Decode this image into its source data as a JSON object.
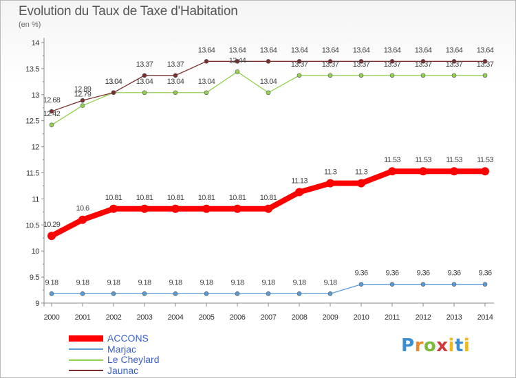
{
  "title": "Evolution du Taux de Taxe d'Habitation",
  "subtitle": "(en %)",
  "logo_text": "Proxiti",
  "chart_data": {
    "type": "line",
    "x": [
      "2000",
      "2001",
      "2002",
      "2003",
      "2004",
      "2005",
      "2006",
      "2007",
      "2008",
      "2009",
      "2010",
      "2011",
      "2012",
      "2013",
      "2014"
    ],
    "ylim": [
      9,
      14
    ],
    "yticks": [
      "9",
      "9.5",
      "10",
      "10.5",
      "11",
      "11.5",
      "12",
      "12.5",
      "13",
      "13.5",
      "14"
    ],
    "grid": false,
    "legend_position": "bottom-left",
    "series": [
      {
        "name": "ACCONS",
        "color": "#ff0000",
        "values": [
          10.29,
          10.6,
          10.81,
          10.81,
          10.81,
          10.81,
          10.81,
          10.81,
          11.13,
          11.3,
          11.3,
          11.53,
          11.53,
          11.53,
          11.53
        ],
        "labels": [
          "10.29",
          "10.6",
          "10.81",
          "10.81",
          "10.81",
          "10.81",
          "10.81",
          "10.81",
          "11.13",
          "11.3",
          "11.3",
          "11.53",
          "11.53",
          "11.53",
          "11.53"
        ]
      },
      {
        "name": "Marjac",
        "color": "#5b9bd5",
        "values": [
          9.18,
          9.18,
          9.18,
          9.18,
          9.18,
          9.18,
          9.18,
          9.18,
          9.18,
          9.18,
          9.36,
          9.36,
          9.36,
          9.36,
          9.36
        ],
        "labels": [
          "9.18",
          "9.18",
          "9.18",
          "9.18",
          "9.18",
          "9.18",
          "9.18",
          "9.18",
          "9.18",
          "9.18",
          "9.36",
          "9.36",
          "9.36",
          "9.36",
          "9.36"
        ]
      },
      {
        "name": "Le Cheylard",
        "color": "#92d050",
        "values": [
          12.42,
          12.79,
          13.04,
          13.04,
          13.04,
          13.04,
          13.44,
          13.04,
          13.37,
          13.37,
          13.37,
          13.37,
          13.37,
          13.37,
          13.37
        ],
        "labels": [
          "12.42",
          "12.79",
          "13.04",
          "13.04",
          "13.04",
          "13.04",
          "13.44",
          "13.04",
          "13.37",
          "13.37",
          "13.37",
          "13.37",
          "13.37",
          "13.37",
          "13.37"
        ]
      },
      {
        "name": "Jaunac",
        "color": "#7b2d2d",
        "values": [
          12.68,
          12.89,
          13.04,
          13.37,
          13.37,
          13.64,
          13.64,
          13.64,
          13.64,
          13.64,
          13.64,
          13.64,
          13.64,
          13.64,
          13.64
        ],
        "labels": [
          "12.68",
          "12.89",
          "13.04",
          "13.37",
          "13.37",
          "13.64",
          "13.64",
          "13.64",
          "13.64",
          "13.64",
          "13.64",
          "13.64",
          "13.64",
          "13.64",
          "13.64"
        ]
      }
    ]
  }
}
